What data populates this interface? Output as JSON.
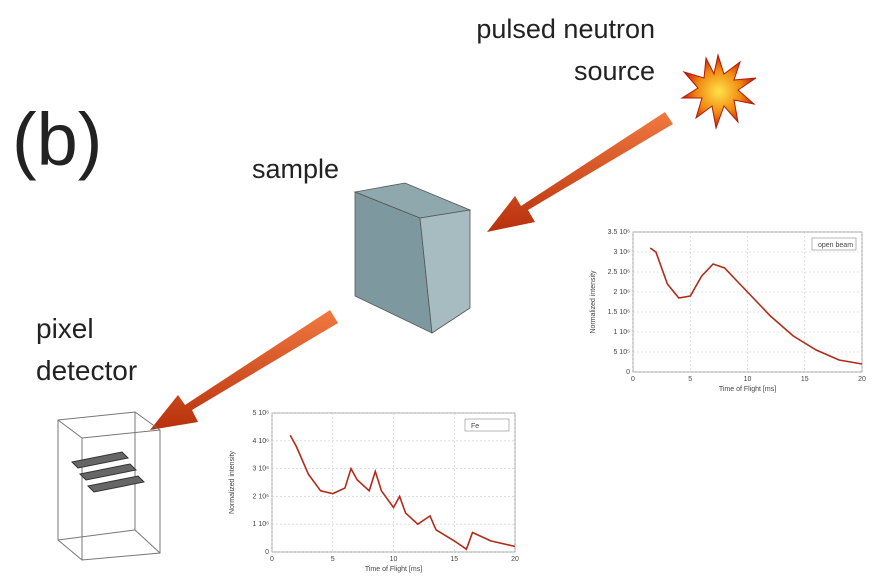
{
  "labels": {
    "panel": "(b)",
    "source_line1": "pulsed neutron",
    "source_line2": "source",
    "sample": "sample",
    "detector_line1": "pixel",
    "detector_line2": "detector"
  },
  "plots": [
    {
      "legend": "open beam",
      "xlabel": "Time of Flight [ms]",
      "ylabel": "Normalized intensity",
      "color": "#b22a1a",
      "xlim": [
        0,
        20
      ],
      "xticks": [
        0,
        5,
        10,
        15,
        20
      ],
      "ylim": [
        0,
        3500000
      ],
      "yticks": [
        0,
        {
          "value": 500000,
          "label": "5 10⁵"
        },
        {
          "value": 1000000,
          "label": "1 10⁶"
        },
        {
          "value": 1500000,
          "label": "1.5 10⁶"
        },
        {
          "value": 2000000,
          "label": "2 10⁶"
        },
        {
          "value": 2500000,
          "label": "2.5 10⁶"
        },
        {
          "value": 3000000,
          "label": "3 10⁶"
        },
        {
          "value": 3500000,
          "label": "3.5 10⁶"
        }
      ],
      "x": [
        1.5,
        2,
        3,
        4,
        5,
        6,
        7,
        8,
        9,
        10,
        12,
        14,
        16,
        18,
        20
      ],
      "y": [
        3100000,
        3000000,
        2200000,
        1850000,
        1900000,
        2400000,
        2700000,
        2600000,
        2300000,
        2000000,
        1400000,
        900000,
        550000,
        300000,
        200000
      ]
    },
    {
      "legend": "Fe",
      "xlabel": "Time of Flight [ms]",
      "ylabel": "Normalized intensity",
      "color": "#b22a1a",
      "xlim": [
        0,
        20
      ],
      "xticks": [
        0,
        5,
        10,
        15,
        20
      ],
      "ylim": [
        0,
        5000000
      ],
      "yticks": [
        0,
        {
          "value": 1000000,
          "label": "1 10⁶"
        },
        {
          "value": 2000000,
          "label": "2 10⁶"
        },
        {
          "value": 3000000,
          "label": "3 10⁶"
        },
        {
          "value": 4000000,
          "label": "4 10⁶"
        },
        {
          "value": 5000000,
          "label": "5 10⁶"
        }
      ],
      "x": [
        1.5,
        2,
        3,
        4,
        5,
        6,
        6.5,
        7,
        8,
        8.5,
        9,
        10,
        10.5,
        11,
        12,
        13,
        13.5,
        15,
        16,
        16.5,
        18,
        20
      ],
      "y": [
        4200000,
        3800000,
        2800000,
        2200000,
        2100000,
        2300000,
        3000000,
        2600000,
        2200000,
        2900000,
        2200000,
        1600000,
        2000000,
        1400000,
        1000000,
        1300000,
        800000,
        400000,
        100000,
        700000,
        400000,
        200000
      ]
    }
  ]
}
